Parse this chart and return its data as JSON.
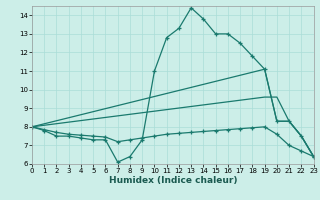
{
  "bg_color": "#cceee8",
  "grid_color": "#aaddd8",
  "line_color": "#1a7a6e",
  "xlabel": "Humidex (Indice chaleur)",
  "xlim": [
    0,
    23
  ],
  "ylim": [
    6,
    14.5
  ],
  "yticks": [
    6,
    7,
    8,
    9,
    10,
    11,
    12,
    13,
    14
  ],
  "xticks": [
    0,
    1,
    2,
    3,
    4,
    5,
    6,
    7,
    8,
    9,
    10,
    11,
    12,
    13,
    14,
    15,
    16,
    17,
    18,
    19,
    20,
    21,
    22,
    23
  ],
  "line1_x": [
    0,
    1,
    2,
    3,
    4,
    5,
    6,
    7,
    8,
    9,
    10,
    11,
    12,
    13,
    14,
    15,
    16,
    17,
    18,
    19,
    20,
    21,
    22,
    23
  ],
  "line1_y": [
    8.0,
    7.8,
    7.5,
    7.5,
    7.4,
    7.3,
    7.3,
    6.1,
    6.4,
    7.3,
    11.0,
    12.8,
    13.3,
    14.4,
    13.8,
    13.0,
    13.0,
    12.5,
    11.8,
    11.1,
    8.3,
    8.3,
    7.5,
    6.4
  ],
  "line2_x": [
    0,
    19,
    20,
    21,
    22,
    23
  ],
  "line2_y": [
    8.0,
    11.1,
    8.3,
    8.3,
    7.5,
    6.4
  ],
  "line3_x": [
    0,
    19,
    20,
    21,
    22,
    23
  ],
  "line3_y": [
    8.0,
    9.6,
    9.6,
    8.3,
    7.5,
    6.4
  ],
  "line4_x": [
    0,
    1,
    2,
    3,
    4,
    5,
    6,
    7,
    8,
    9,
    10,
    11,
    12,
    13,
    14,
    15,
    16,
    17,
    18,
    19,
    20,
    21,
    22,
    23
  ],
  "line4_y": [
    8.0,
    7.85,
    7.7,
    7.6,
    7.55,
    7.5,
    7.45,
    7.2,
    7.3,
    7.4,
    7.5,
    7.6,
    7.65,
    7.7,
    7.75,
    7.8,
    7.85,
    7.9,
    7.95,
    8.0,
    7.6,
    7.0,
    6.7,
    6.4
  ]
}
